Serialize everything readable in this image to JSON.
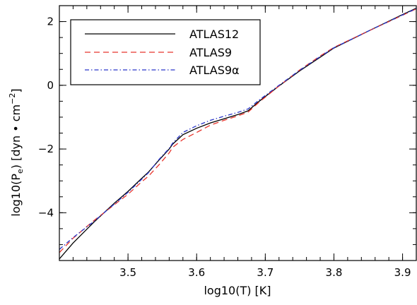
{
  "chart_data": {
    "type": "line",
    "title": "",
    "xlabel": "log10(T) [K]",
    "ylabel_main": "log10(P",
    "ylabel_sub": "e",
    "ylabel_rest": ") [dyn • cm",
    "ylabel_sup": "−2",
    "ylabel_end": "]",
    "xlim": [
      3.4,
      3.92
    ],
    "ylim": [
      -5.5,
      2.5
    ],
    "xticks": [
      {
        "v": 3.5,
        "label": "3.5"
      },
      {
        "v": 3.6,
        "label": "3.6"
      },
      {
        "v": 3.7,
        "label": "3.7"
      },
      {
        "v": 3.8,
        "label": "3.8"
      },
      {
        "v": 3.9,
        "label": "3.9"
      }
    ],
    "yticks": [
      {
        "v": -4,
        "label": "−4"
      },
      {
        "v": -2,
        "label": "−2"
      },
      {
        "v": 0,
        "label": "0"
      },
      {
        "v": 2,
        "label": "2"
      }
    ],
    "x_minor_step": 0.02,
    "y_minor_step": 0.5,
    "legend_position": "top-left",
    "series": [
      {
        "name": "ATLAS12",
        "color": "#000000",
        "dash": "solid",
        "x": [
          3.4,
          3.42,
          3.45,
          3.48,
          3.5,
          3.52,
          3.53,
          3.545,
          3.56,
          3.565,
          3.58,
          3.6,
          3.62,
          3.64,
          3.66,
          3.675,
          3.69,
          3.72,
          3.75,
          3.78,
          3.8,
          3.85,
          3.9,
          3.92
        ],
        "y": [
          -5.45,
          -4.95,
          -4.3,
          -3.7,
          -3.33,
          -2.92,
          -2.72,
          -2.35,
          -2.0,
          -1.85,
          -1.55,
          -1.35,
          -1.18,
          -1.05,
          -0.92,
          -0.8,
          -0.52,
          -0.02,
          0.45,
          0.88,
          1.17,
          1.7,
          2.22,
          2.42
        ]
      },
      {
        "name": "ATLAS9",
        "color": "#e8342c",
        "dash": "dashed",
        "x": [
          3.4,
          3.42,
          3.45,
          3.48,
          3.5,
          3.52,
          3.53,
          3.545,
          3.56,
          3.565,
          3.58,
          3.6,
          3.62,
          3.64,
          3.66,
          3.675,
          3.69,
          3.72,
          3.75,
          3.78,
          3.8,
          3.85,
          3.9,
          3.92
        ],
        "y": [
          -5.25,
          -4.8,
          -4.25,
          -3.75,
          -3.42,
          -3.03,
          -2.85,
          -2.5,
          -2.12,
          -1.95,
          -1.7,
          -1.48,
          -1.25,
          -1.1,
          -0.96,
          -0.84,
          -0.55,
          -0.02,
          0.48,
          0.92,
          1.19,
          1.7,
          2.2,
          2.4
        ]
      },
      {
        "name": "ATLAS9α",
        "color": "#2a36c9",
        "dash": "dashdot",
        "x": [
          3.4,
          3.42,
          3.45,
          3.48,
          3.5,
          3.52,
          3.53,
          3.545,
          3.56,
          3.565,
          3.58,
          3.6,
          3.62,
          3.64,
          3.66,
          3.675,
          3.69,
          3.72,
          3.75,
          3.78,
          3.8,
          3.85,
          3.9,
          3.92
        ],
        "y": [
          -5.15,
          -4.78,
          -4.28,
          -3.73,
          -3.36,
          -2.95,
          -2.74,
          -2.33,
          -1.98,
          -1.82,
          -1.48,
          -1.27,
          -1.1,
          -0.97,
          -0.85,
          -0.74,
          -0.48,
          0.0,
          0.47,
          0.9,
          1.18,
          1.7,
          2.21,
          2.41
        ]
      }
    ],
    "legend_entries": [
      "ATLAS12",
      "ATLAS9",
      "ATLAS9α"
    ]
  }
}
